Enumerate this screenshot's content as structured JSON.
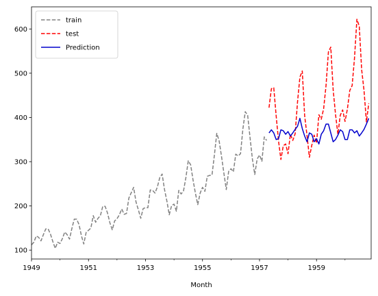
{
  "chart_data": {
    "type": "line",
    "title": "",
    "xlabel": "Month",
    "ylabel": "",
    "x_start": "1949-01",
    "x_end": "1960-12",
    "xlim": [
      "1949-01",
      "1960-12"
    ],
    "ylim": [
      80,
      650
    ],
    "x_ticks": [
      {
        "label": "1949",
        "x": "1949-01"
      },
      {
        "label": "1951",
        "x": "1951-01"
      },
      {
        "label": "1953",
        "x": "1953-01"
      },
      {
        "label": "1955",
        "x": "1955-01"
      },
      {
        "label": "1957",
        "x": "1957-01"
      },
      {
        "label": "1959",
        "x": "1959-01"
      }
    ],
    "y_ticks": [
      100,
      200,
      300,
      400,
      500,
      600
    ],
    "grid": false,
    "legend_position": "upper-left",
    "series": [
      {
        "name": "train",
        "color": "#808080",
        "dash": "dashed",
        "x_start": "1949-01",
        "values": [
          112,
          118,
          132,
          129,
          121,
          135,
          148,
          148,
          136,
          119,
          104,
          118,
          115,
          126,
          141,
          135,
          125,
          149,
          170,
          170,
          158,
          133,
          114,
          140,
          145,
          150,
          178,
          163,
          172,
          178,
          199,
          199,
          184,
          162,
          146,
          166,
          171,
          180,
          193,
          181,
          183,
          218,
          230,
          242,
          209,
          191,
          172,
          194,
          196,
          196,
          236,
          235,
          229,
          243,
          264,
          272,
          237,
          211,
          180,
          201,
          204,
          188,
          235,
          227,
          234,
          264,
          302,
          293,
          259,
          229,
          203,
          229,
          242,
          233,
          267,
          269,
          270,
          315,
          364,
          347,
          312,
          274,
          237,
          278,
          284,
          277,
          317,
          313,
          318,
          374,
          413,
          405,
          355,
          306,
          271,
          306,
          315,
          301,
          356,
          348
        ]
      },
      {
        "name": "test",
        "color": "#ff0000",
        "dash": "dashed",
        "x_start": "1957-05",
        "values": [
          422,
          465,
          467,
          404,
          347,
          305,
          336,
          340,
          318,
          362,
          348,
          363,
          435,
          491,
          505,
          404,
          359,
          310,
          337,
          360,
          342,
          406,
          396,
          420,
          472,
          548,
          559,
          463,
          407,
          362,
          405,
          417,
          391,
          419,
          461,
          472,
          535,
          622,
          606,
          508,
          461,
          390,
          432
        ]
      },
      {
        "name": "Prediction",
        "color": "#0000cc",
        "dash": "solid",
        "x_start": "1957-05",
        "values": [
          365,
          372,
          365,
          350,
          352,
          372,
          370,
          362,
          368,
          358,
          365,
          373,
          380,
          398,
          375,
          358,
          345,
          365,
          362,
          345,
          352,
          340,
          362,
          370,
          385,
          385,
          365,
          345,
          350,
          360,
          372,
          368,
          350,
          350,
          372,
          372,
          365,
          370,
          358,
          365,
          373,
          385,
          398
        ]
      }
    ]
  }
}
